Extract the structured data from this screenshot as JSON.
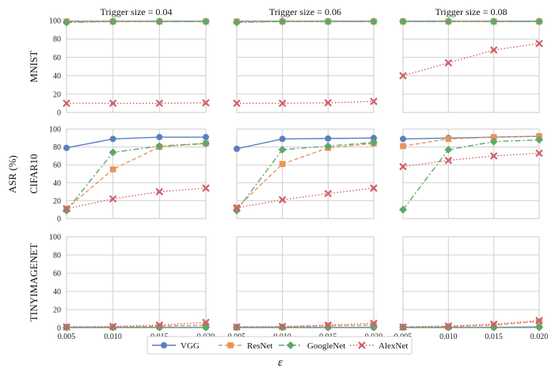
{
  "chart_data": {
    "type": "line",
    "layout": "grid 3 rows x 3 columns of line charts",
    "x": [
      0.005,
      0.01,
      0.015,
      0.02
    ],
    "x_tick_labels": [
      "0.005",
      "0.010",
      "0.015",
      "0.020"
    ],
    "xlabel": "ε",
    "ylabel": "ASR (%)",
    "ylim": [
      0,
      100
    ],
    "y_ticks": [
      0,
      20,
      40,
      60,
      80,
      100
    ],
    "grid": true,
    "column_titles": [
      "Trigger size = 0.04",
      "Trigger size = 0.06",
      "Trigger size = 0.08"
    ],
    "row_labels": [
      "MNIST",
      "CIFAR10",
      "TINYIMAGENET"
    ],
    "legend": {
      "placement": "bottom-center",
      "entries": [
        "VGG",
        "ResNet",
        "GoogleNet",
        "AlexNet"
      ]
    },
    "series_styles": [
      {
        "name": "VGG",
        "color": "#5b7fbf",
        "marker": "circle",
        "dash": "solid"
      },
      {
        "name": "ResNet",
        "color": "#e8945a",
        "marker": "square",
        "dash": "dashed"
      },
      {
        "name": "GoogleNet",
        "color": "#5ea86a",
        "marker": "diamond",
        "dash": "dashdot"
      },
      {
        "name": "AlexNet",
        "color": "#d0606a",
        "marker": "plus",
        "dash": "dotted"
      }
    ],
    "panels": [
      {
        "row": "MNIST",
        "trigger_size": "0.04",
        "series": [
          {
            "name": "VGG",
            "values": [
              99,
              99,
              99,
              99
            ]
          },
          {
            "name": "ResNet",
            "values": [
              99,
              99,
              99,
              99
            ]
          },
          {
            "name": "GoogleNet",
            "values": [
              98,
              99,
              99,
              99
            ]
          },
          {
            "name": "AlexNet",
            "values": [
              10,
              10,
              10,
              10.5
            ]
          }
        ]
      },
      {
        "row": "MNIST",
        "trigger_size": "0.06",
        "series": [
          {
            "name": "VGG",
            "values": [
              99,
              99,
              99,
              99
            ]
          },
          {
            "name": "ResNet",
            "values": [
              99,
              99,
              99,
              99
            ]
          },
          {
            "name": "GoogleNet",
            "values": [
              98,
              99,
              99,
              99
            ]
          },
          {
            "name": "AlexNet",
            "values": [
              10,
              10,
              10.5,
              12
            ]
          }
        ]
      },
      {
        "row": "MNIST",
        "trigger_size": "0.08",
        "series": [
          {
            "name": "VGG",
            "values": [
              99,
              99,
              99,
              99
            ]
          },
          {
            "name": "ResNet",
            "values": [
              99,
              99,
              99,
              99
            ]
          },
          {
            "name": "GoogleNet",
            "values": [
              99,
              99,
              99,
              99
            ]
          },
          {
            "name": "AlexNet",
            "values": [
              40,
              54,
              68,
              75
            ]
          }
        ]
      },
      {
        "row": "CIFAR10",
        "trigger_size": "0.04",
        "series": [
          {
            "name": "VGG",
            "values": [
              79,
              89,
              91,
              91
            ]
          },
          {
            "name": "ResNet",
            "values": [
              11,
              55,
              80,
              84
            ]
          },
          {
            "name": "GoogleNet",
            "values": [
              9,
              74,
              81,
              84
            ]
          },
          {
            "name": "AlexNet",
            "values": [
              11,
              22,
              30,
              34
            ]
          }
        ]
      },
      {
        "row": "CIFAR10",
        "trigger_size": "0.06",
        "series": [
          {
            "name": "VGG",
            "values": [
              78,
              89,
              89.5,
              90
            ]
          },
          {
            "name": "ResNet",
            "values": [
              12,
              61,
              79,
              84
            ]
          },
          {
            "name": "GoogleNet",
            "values": [
              9,
              77,
              81,
              85
            ]
          },
          {
            "name": "AlexNet",
            "values": [
              12,
              21,
              28,
              34
            ]
          }
        ]
      },
      {
        "row": "CIFAR10",
        "trigger_size": "0.08",
        "series": [
          {
            "name": "VGG",
            "values": [
              89,
              90,
              91,
              92
            ]
          },
          {
            "name": "ResNet",
            "values": [
              81,
              89,
              91,
              92
            ]
          },
          {
            "name": "GoogleNet",
            "values": [
              10,
              77,
              86,
              88
            ]
          },
          {
            "name": "AlexNet",
            "values": [
              58,
              65,
              70,
              73
            ]
          }
        ]
      },
      {
        "row": "TINYIMAGENET",
        "trigger_size": "0.04",
        "series": [
          {
            "name": "VGG",
            "values": [
              0.5,
              0.5,
              0.5,
              0.5
            ]
          },
          {
            "name": "ResNet",
            "values": [
              1,
              1,
              2,
              3
            ]
          },
          {
            "name": "GoogleNet",
            "values": [
              0.5,
              0.5,
              0.5,
              0.5
            ]
          },
          {
            "name": "AlexNet",
            "values": [
              1,
              1.5,
              3,
              6
            ]
          }
        ]
      },
      {
        "row": "TINYIMAGENET",
        "trigger_size": "0.06",
        "series": [
          {
            "name": "VGG",
            "values": [
              0.5,
              0.5,
              0.5,
              0.5
            ]
          },
          {
            "name": "ResNet",
            "values": [
              1,
              1,
              2.5,
              3
            ]
          },
          {
            "name": "GoogleNet",
            "values": [
              0.5,
              0.5,
              0.5,
              0.5
            ]
          },
          {
            "name": "AlexNet",
            "values": [
              1,
              1.5,
              3,
              5
            ]
          }
        ]
      },
      {
        "row": "TINYIMAGENET",
        "trigger_size": "0.08",
        "series": [
          {
            "name": "VGG",
            "values": [
              0.5,
              0.5,
              0.5,
              1
            ]
          },
          {
            "name": "ResNet",
            "values": [
              1,
              1.5,
              3,
              7
            ]
          },
          {
            "name": "GoogleNet",
            "values": [
              0.5,
              0.5,
              0.5,
              0.5
            ]
          },
          {
            "name": "AlexNet",
            "values": [
              1,
              2,
              4,
              8
            ]
          }
        ]
      }
    ]
  }
}
